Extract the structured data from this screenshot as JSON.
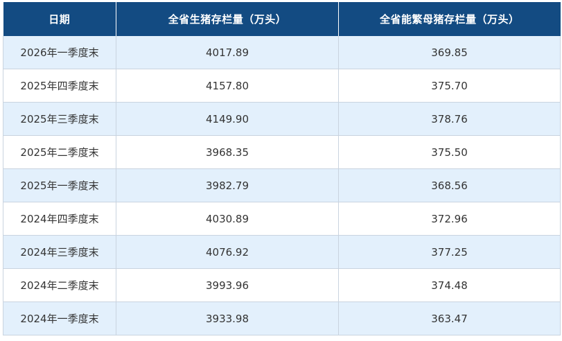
{
  "table": {
    "headers": [
      "日期",
      "全省生猪存栏量（万头）",
      "全省能繁母猪存栏量（万头）"
    ],
    "rows": [
      [
        "2026年一季度末",
        "4017.89",
        "369.85"
      ],
      [
        "2025年四季度末",
        "4157.80",
        "375.70"
      ],
      [
        "2025年三季度末",
        "4149.90",
        "378.76"
      ],
      [
        "2025年二季度末",
        "3968.35",
        "375.50"
      ],
      [
        "2025年一季度末",
        "3982.79",
        "368.56"
      ],
      [
        "2024年四季度末",
        "4030.89",
        "372.96"
      ],
      [
        "2024年三季度末",
        "4076.92",
        "377.25"
      ],
      [
        "2024年二季度末",
        "3993.96",
        "374.48"
      ],
      [
        "2024年一季度末",
        "3933.98",
        "363.47"
      ]
    ]
  },
  "colors": {
    "header_bg": "#134b82",
    "header_text": "#ffffff",
    "stripe_bg": "#e3f0fc",
    "plain_bg": "#ffffff",
    "border": "#c9d3df",
    "cell_text": "#333333"
  }
}
